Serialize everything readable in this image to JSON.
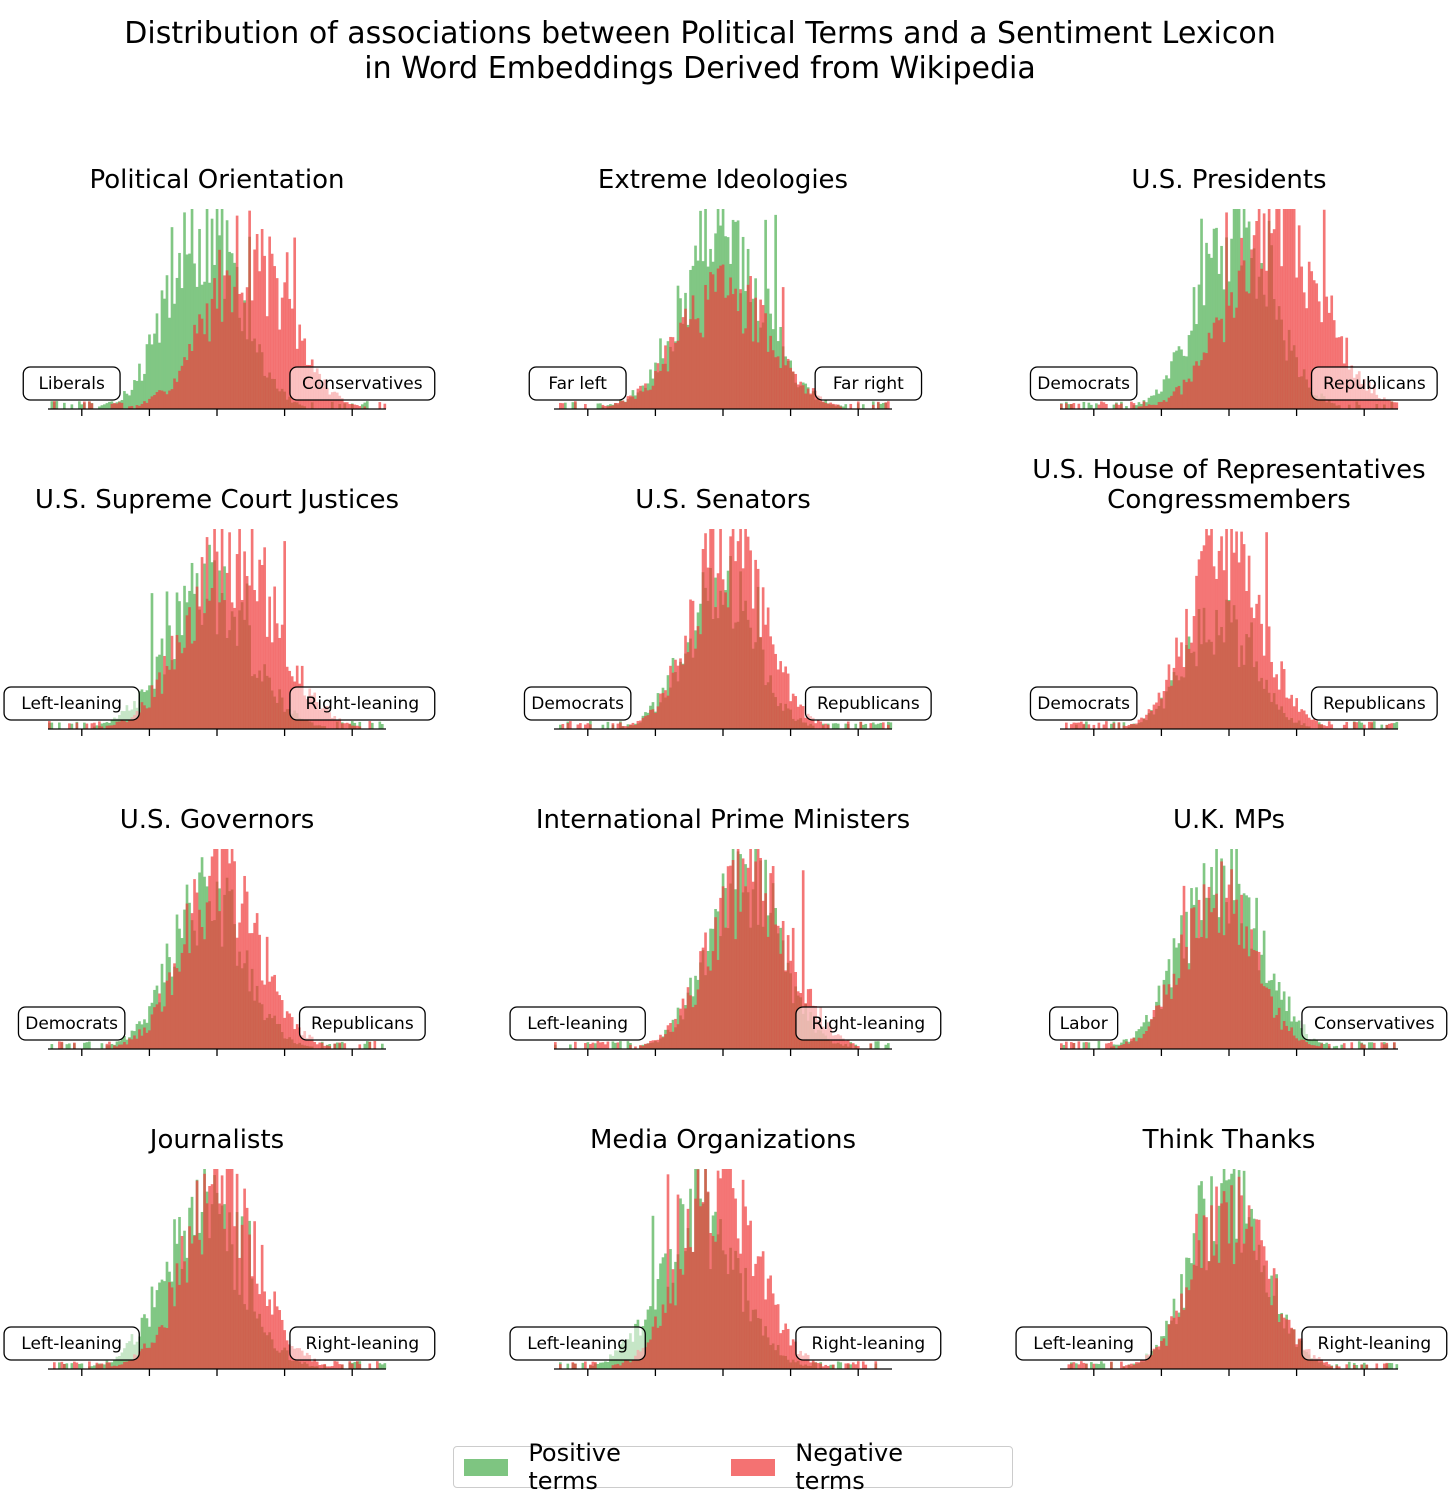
{
  "title_line1": "Distribution of associations between Political Terms and a Sentiment Lexicon",
  "title_line2": "in Word Embeddings Derived from Wikipedia",
  "legend": {
    "positive_label": "Positive terms",
    "negative_label": "Negative terms",
    "positive_color": "#4caf50",
    "negative_color": "#f03c3c",
    "overlap_color": "#c0553a",
    "placement": "bottom-center"
  },
  "chart_data": [
    {
      "type": "bar",
      "title": "Political Orientation",
      "left_label": "Liberals",
      "right_label": "Conservatives",
      "positive": {
        "center": -0.4,
        "spread": 1.05,
        "peak": 1.0
      },
      "negative": {
        "center": 0.9,
        "spread": 1.2,
        "peak": 0.86
      }
    },
    {
      "type": "bar",
      "title": "Extreme Ideologies",
      "left_label": "Far left",
      "right_label": "Far right",
      "positive": {
        "center": 0.0,
        "spread": 1.2,
        "peak": 1.0
      },
      "negative": {
        "center": 0.05,
        "spread": 1.3,
        "peak": 0.66
      }
    },
    {
      "type": "bar",
      "title": "U.S. Presidents",
      "left_label": "Democrats",
      "right_label": "Republicans",
      "positive": {
        "center": 0.2,
        "spread": 1.1,
        "peak": 0.96
      },
      "negative": {
        "center": 1.4,
        "spread": 1.35,
        "peak": 1.0
      }
    },
    {
      "type": "bar",
      "title": "U.S. Supreme Court Justices",
      "left_label": "Left-leaning",
      "right_label": "Right-leaning",
      "positive": {
        "center": -0.25,
        "spread": 1.2,
        "peak": 0.78
      },
      "negative": {
        "center": 0.45,
        "spread": 1.3,
        "peak": 1.0
      }
    },
    {
      "type": "bar",
      "title": "U.S. Senators",
      "left_label": "Democrats",
      "right_label": "Republicans",
      "positive": {
        "center": -0.1,
        "spread": 1.0,
        "peak": 0.8
      },
      "negative": {
        "center": 0.15,
        "spread": 1.05,
        "peak": 1.0
      }
    },
    {
      "type": "bar",
      "title": "U.S. House of Representatives Congressmembers",
      "left_label": "Democrats",
      "right_label": "Republicans",
      "positive": {
        "center": -0.3,
        "spread": 1.0,
        "peak": 0.6
      },
      "negative": {
        "center": -0.1,
        "spread": 1.05,
        "peak": 1.0
      }
    },
    {
      "type": "bar",
      "title": "U.S. Governors",
      "left_label": "Democrats",
      "right_label": "Republicans",
      "positive": {
        "center": -0.3,
        "spread": 1.05,
        "peak": 0.86
      },
      "negative": {
        "center": 0.15,
        "spread": 1.1,
        "peak": 1.0
      }
    },
    {
      "type": "bar",
      "title": "International Prime Ministers",
      "left_label": "Left-leaning",
      "right_label": "Right-leaning",
      "positive": {
        "center": 0.6,
        "spread": 1.05,
        "peak": 1.0
      },
      "negative": {
        "center": 0.8,
        "spread": 1.15,
        "peak": 0.96
      }
    },
    {
      "type": "bar",
      "title": "U.K. MPs",
      "left_label": "Labor",
      "right_label": "Conservatives",
      "positive": {
        "center": -0.2,
        "spread": 1.15,
        "peak": 1.0
      },
      "negative": {
        "center": -0.35,
        "spread": 1.05,
        "peak": 0.83
      }
    },
    {
      "type": "bar",
      "title": "Journalists",
      "left_label": "Left-leaning",
      "right_label": "Right-leaning",
      "positive": {
        "center": -0.4,
        "spread": 1.15,
        "peak": 0.86
      },
      "negative": {
        "center": 0.15,
        "spread": 1.1,
        "peak": 1.0
      }
    },
    {
      "type": "bar",
      "title": "Media Organizations",
      "left_label": "Left-leaning",
      "right_label": "Right-leaning",
      "positive": {
        "center": -0.7,
        "spread": 1.15,
        "peak": 0.86
      },
      "negative": {
        "center": -0.1,
        "spread": 1.1,
        "peak": 1.0
      }
    },
    {
      "type": "bar",
      "title": "Think Thanks",
      "left_label": "Left-leaning",
      "right_label": "Right-leaning",
      "positive": {
        "center": 0.0,
        "spread": 1.05,
        "peak": 1.0
      },
      "negative": {
        "center": 0.05,
        "spread": 1.1,
        "peak": 0.85
      }
    }
  ]
}
